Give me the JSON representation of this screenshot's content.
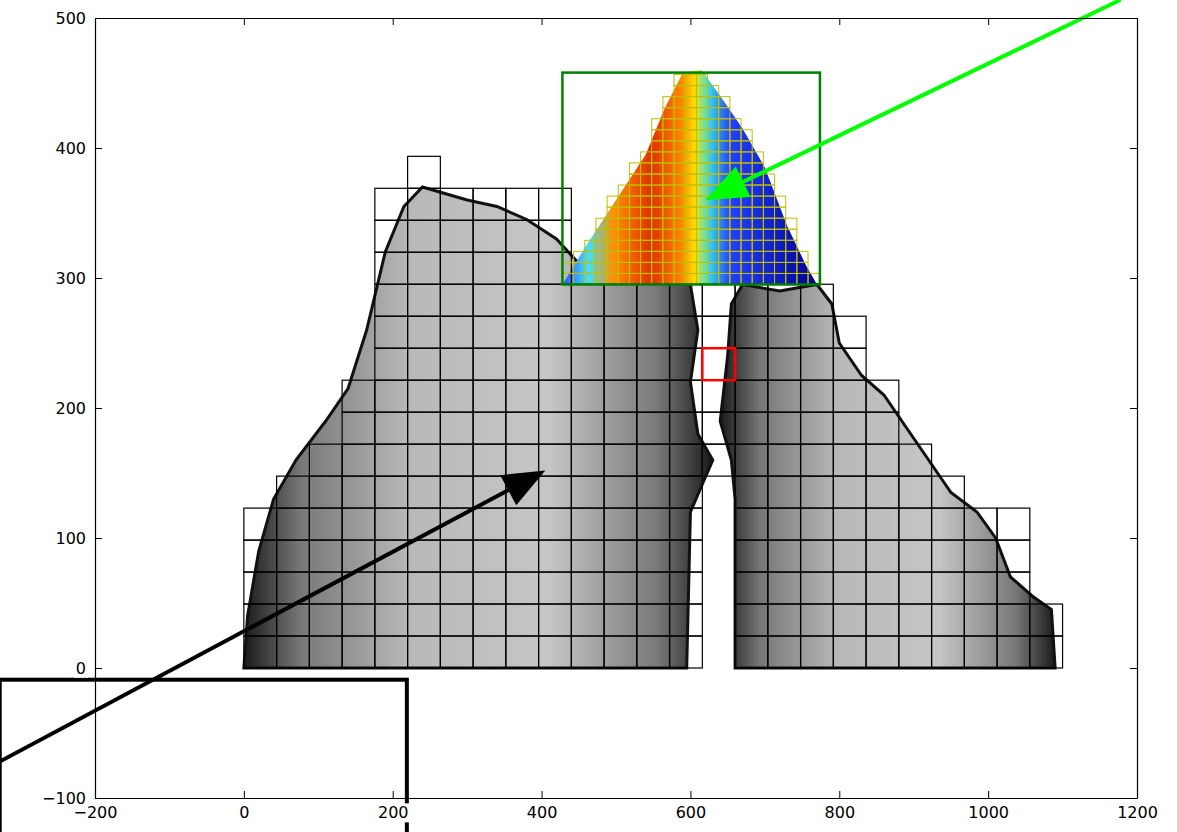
{
  "chart_data": {
    "type": "image",
    "xlim": [
      -200,
      1200
    ],
    "ylim": [
      -100,
      500
    ],
    "xticks": [
      {
        "value": -200,
        "label": "−200"
      },
      0,
      200,
      400,
      600,
      800,
      1000,
      1200
    ],
    "yticks": [
      {
        "value": -100,
        "label": "−100"
      },
      0,
      100,
      200,
      300,
      400,
      500
    ],
    "gray_regions": [
      [
        [
          0,
          0
        ],
        [
          5,
          40
        ],
        [
          20,
          90
        ],
        [
          40,
          130
        ],
        [
          70,
          160
        ],
        [
          110,
          190
        ],
        [
          140,
          215
        ],
        [
          165,
          260
        ],
        [
          190,
          320
        ],
        [
          215,
          355
        ],
        [
          240,
          370
        ],
        [
          270,
          365
        ],
        [
          300,
          360
        ],
        [
          340,
          355
        ],
        [
          380,
          345
        ],
        [
          420,
          330
        ],
        [
          460,
          305
        ],
        [
          520,
          300
        ],
        [
          600,
          295
        ],
        [
          610,
          260
        ],
        [
          600,
          220
        ],
        [
          610,
          180
        ],
        [
          630,
          160
        ],
        [
          615,
          140
        ],
        [
          600,
          120
        ],
        [
          595,
          0
        ]
      ],
      [
        [
          660,
          0
        ],
        [
          660,
          130
        ],
        [
          655,
          160
        ],
        [
          640,
          190
        ],
        [
          650,
          240
        ],
        [
          655,
          280
        ],
        [
          670,
          295
        ],
        [
          720,
          290
        ],
        [
          770,
          295
        ],
        [
          790,
          280
        ],
        [
          800,
          250
        ],
        [
          830,
          225
        ],
        [
          860,
          210
        ],
        [
          890,
          185
        ],
        [
          920,
          160
        ],
        [
          950,
          135
        ],
        [
          985,
          120
        ],
        [
          1010,
          100
        ],
        [
          1030,
          70
        ],
        [
          1060,
          55
        ],
        [
          1085,
          45
        ],
        [
          1090,
          0
        ]
      ]
    ],
    "heat_region": [
      [
        428,
        295
      ],
      [
        460,
        325
      ],
      [
        500,
        360
      ],
      [
        540,
        395
      ],
      [
        565,
        430
      ],
      [
        590,
        458
      ],
      [
        615,
        460
      ],
      [
        640,
        440
      ],
      [
        670,
        415
      ],
      [
        700,
        385
      ],
      [
        730,
        340
      ],
      [
        755,
        310
      ],
      [
        770,
        295
      ]
    ],
    "grid_cells": {
      "color": "#000000",
      "cell_width": 44,
      "cell_height": 24.6,
      "columns": [
        {
          "x": 0,
          "y": 0,
          "rows": 5
        },
        {
          "x": 44,
          "y": 0,
          "rows": 6
        },
        {
          "x": 88,
          "y": 0,
          "rows": 7
        },
        {
          "x": 132,
          "y": 0,
          "rows": 9
        },
        {
          "x": 176,
          "y": 0,
          "rows": 15
        },
        {
          "x": 220,
          "y": 0,
          "rows": 16
        },
        {
          "x": 264,
          "y": 0,
          "rows": 15
        },
        {
          "x": 308,
          "y": 0,
          "rows": 15
        },
        {
          "x": 352,
          "y": 0,
          "rows": 15
        },
        {
          "x": 396,
          "y": 0,
          "rows": 15
        },
        {
          "x": 440,
          "y": 0,
          "rows": 12
        },
        {
          "x": 484,
          "y": 0,
          "rows": 12
        },
        {
          "x": 528,
          "y": 0,
          "rows": 12
        },
        {
          "x": 572,
          "y": 0,
          "rows": 12
        },
        {
          "x": 616,
          "y": 147.6,
          "rows": 6
        },
        {
          "x": 660,
          "y": 0,
          "rows": 12
        },
        {
          "x": 704,
          "y": 0,
          "rows": 12
        },
        {
          "x": 748,
          "y": 0,
          "rows": 12
        },
        {
          "x": 792,
          "y": 0,
          "rows": 11
        },
        {
          "x": 836,
          "y": 0,
          "rows": 9
        },
        {
          "x": 880,
          "y": 0,
          "rows": 7
        },
        {
          "x": 924,
          "y": 0,
          "rows": 6
        },
        {
          "x": 968,
          "y": 0,
          "rows": 5
        },
        {
          "x": 1012,
          "y": 0,
          "rows": 5
        },
        {
          "x": 1056,
          "y": 0,
          "rows": 2
        }
      ]
    },
    "fine_cells": {
      "color": "#bfbf00",
      "cell_width": 15,
      "cell_height": 8.5,
      "y": 295,
      "columns": [
        {
          "x": 428,
          "rows": 2
        },
        {
          "x": 443,
          "rows": 3
        },
        {
          "x": 458,
          "rows": 4
        },
        {
          "x": 473,
          "rows": 6
        },
        {
          "x": 488,
          "rows": 8
        },
        {
          "x": 503,
          "rows": 9
        },
        {
          "x": 518,
          "rows": 11
        },
        {
          "x": 533,
          "rows": 12
        },
        {
          "x": 548,
          "rows": 15
        },
        {
          "x": 563,
          "rows": 17
        },
        {
          "x": 578,
          "rows": 19
        },
        {
          "x": 593,
          "rows": 19
        },
        {
          "x": 608,
          "rows": 19
        },
        {
          "x": 623,
          "rows": 18
        },
        {
          "x": 638,
          "rows": 17
        },
        {
          "x": 653,
          "rows": 15
        },
        {
          "x": 668,
          "rows": 14
        },
        {
          "x": 683,
          "rows": 12
        },
        {
          "x": 698,
          "rows": 10
        },
        {
          "x": 713,
          "rows": 8
        },
        {
          "x": 728,
          "rows": 6
        },
        {
          "x": 743,
          "rows": 3
        },
        {
          "x": 758,
          "rows": 1
        }
      ]
    },
    "rectangles": [
      {
        "color": "#008000",
        "x": [
          428,
          774
        ],
        "y": [
          295,
          458
        ]
      },
      {
        "color": "#ff0000",
        "x": [
          616,
          660
        ],
        "y": [
          221.4,
          246
        ]
      }
    ],
    "annotations": {
      "arrows": [
        {
          "color": "#00ff00",
          "from": [
            1178,
            514
          ],
          "to": [
            620,
            360
          ]
        },
        {
          "color": "#000000",
          "from": [
            -328,
            -72
          ],
          "to": [
            405,
            152
          ]
        }
      ],
      "boxes": [
        {
          "color": "#000000",
          "x": [
            -328,
            219
          ],
          "y": [
            -132,
            -9
          ]
        }
      ]
    }
  }
}
